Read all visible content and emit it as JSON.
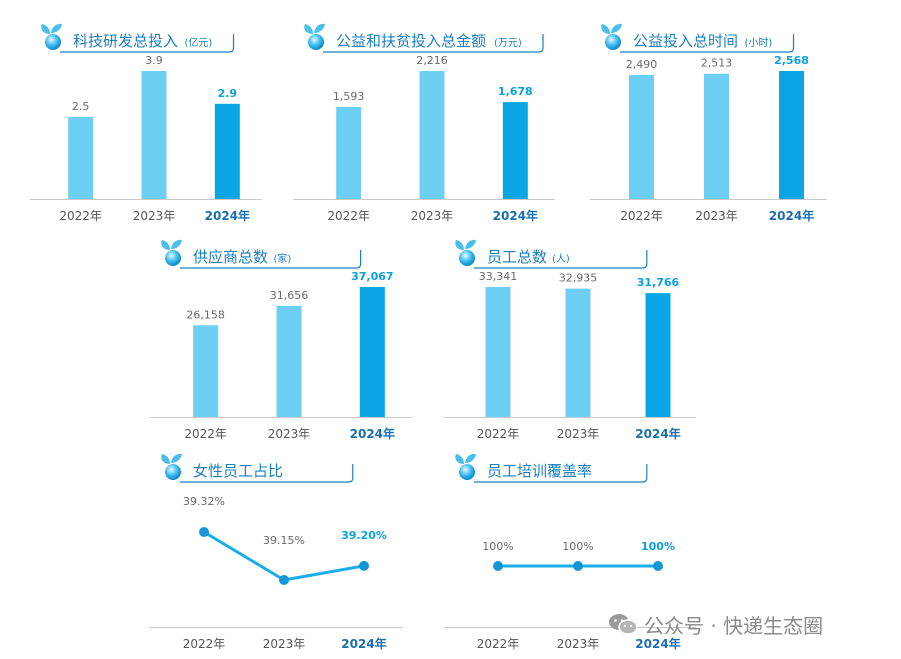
{
  "colors": {
    "bar_light": "#6ecff4",
    "bar_highlight": "#0aa5e4",
    "title": "#1a7fbf",
    "axis": "#c8c8c8",
    "line": "#18aee8"
  },
  "watermark": {
    "text": "公众号 · 快递生态圈",
    "icon": "wechat-icon"
  },
  "chart_data": [
    {
      "type": "bar",
      "title": "科技研发总投入",
      "unit": "(亿元)",
      "categories": [
        "2022年",
        "2023年",
        "2024年"
      ],
      "value_labels": [
        "2.5",
        "3.9",
        "2.9"
      ],
      "values": [
        2.5,
        3.9,
        2.9
      ],
      "highlight_index": 2
    },
    {
      "type": "bar",
      "title": "公益和扶贫投入总金额",
      "unit": "(万元)",
      "categories": [
        "2022年",
        "2023年",
        "2024年"
      ],
      "value_labels": [
        "1,593",
        "2,216",
        "1,678"
      ],
      "values": [
        1593,
        2216,
        1678
      ],
      "highlight_index": 2
    },
    {
      "type": "bar",
      "title": "公益投入总时间",
      "unit": "(小时)",
      "categories": [
        "2022年",
        "2023年",
        "2024年"
      ],
      "value_labels": [
        "2,490",
        "2,513",
        "2,568"
      ],
      "values": [
        2490,
        2513,
        2568
      ],
      "highlight_index": 2
    },
    {
      "type": "bar",
      "title": "供应商总数",
      "unit": "(家)",
      "categories": [
        "2022年",
        "2023年",
        "2024年"
      ],
      "value_labels": [
        "26,158",
        "31,656",
        "37,067"
      ],
      "values": [
        26158,
        31656,
        37067
      ],
      "highlight_index": 2
    },
    {
      "type": "bar",
      "title": "员工总数",
      "unit": "(人)",
      "categories": [
        "2022年",
        "2023年",
        "2024年"
      ],
      "value_labels": [
        "33,341",
        "32,935",
        "31,766"
      ],
      "values": [
        33341,
        32935,
        31766
      ],
      "highlight_index": 2
    },
    {
      "type": "line",
      "title": "女性员工占比",
      "unit": "",
      "categories": [
        "2022年",
        "2023年",
        "2024年"
      ],
      "value_labels": [
        "39.32%",
        "39.15%",
        "39.20%"
      ],
      "values": [
        39.32,
        39.15,
        39.2
      ],
      "highlight_index": 2
    },
    {
      "type": "line",
      "title": "员工培训覆盖率",
      "unit": "",
      "categories": [
        "2022年",
        "2023年",
        "2024年"
      ],
      "value_labels": [
        "100%",
        "100%",
        "100%"
      ],
      "values": [
        100,
        100,
        100
      ],
      "highlight_index": 2
    }
  ]
}
